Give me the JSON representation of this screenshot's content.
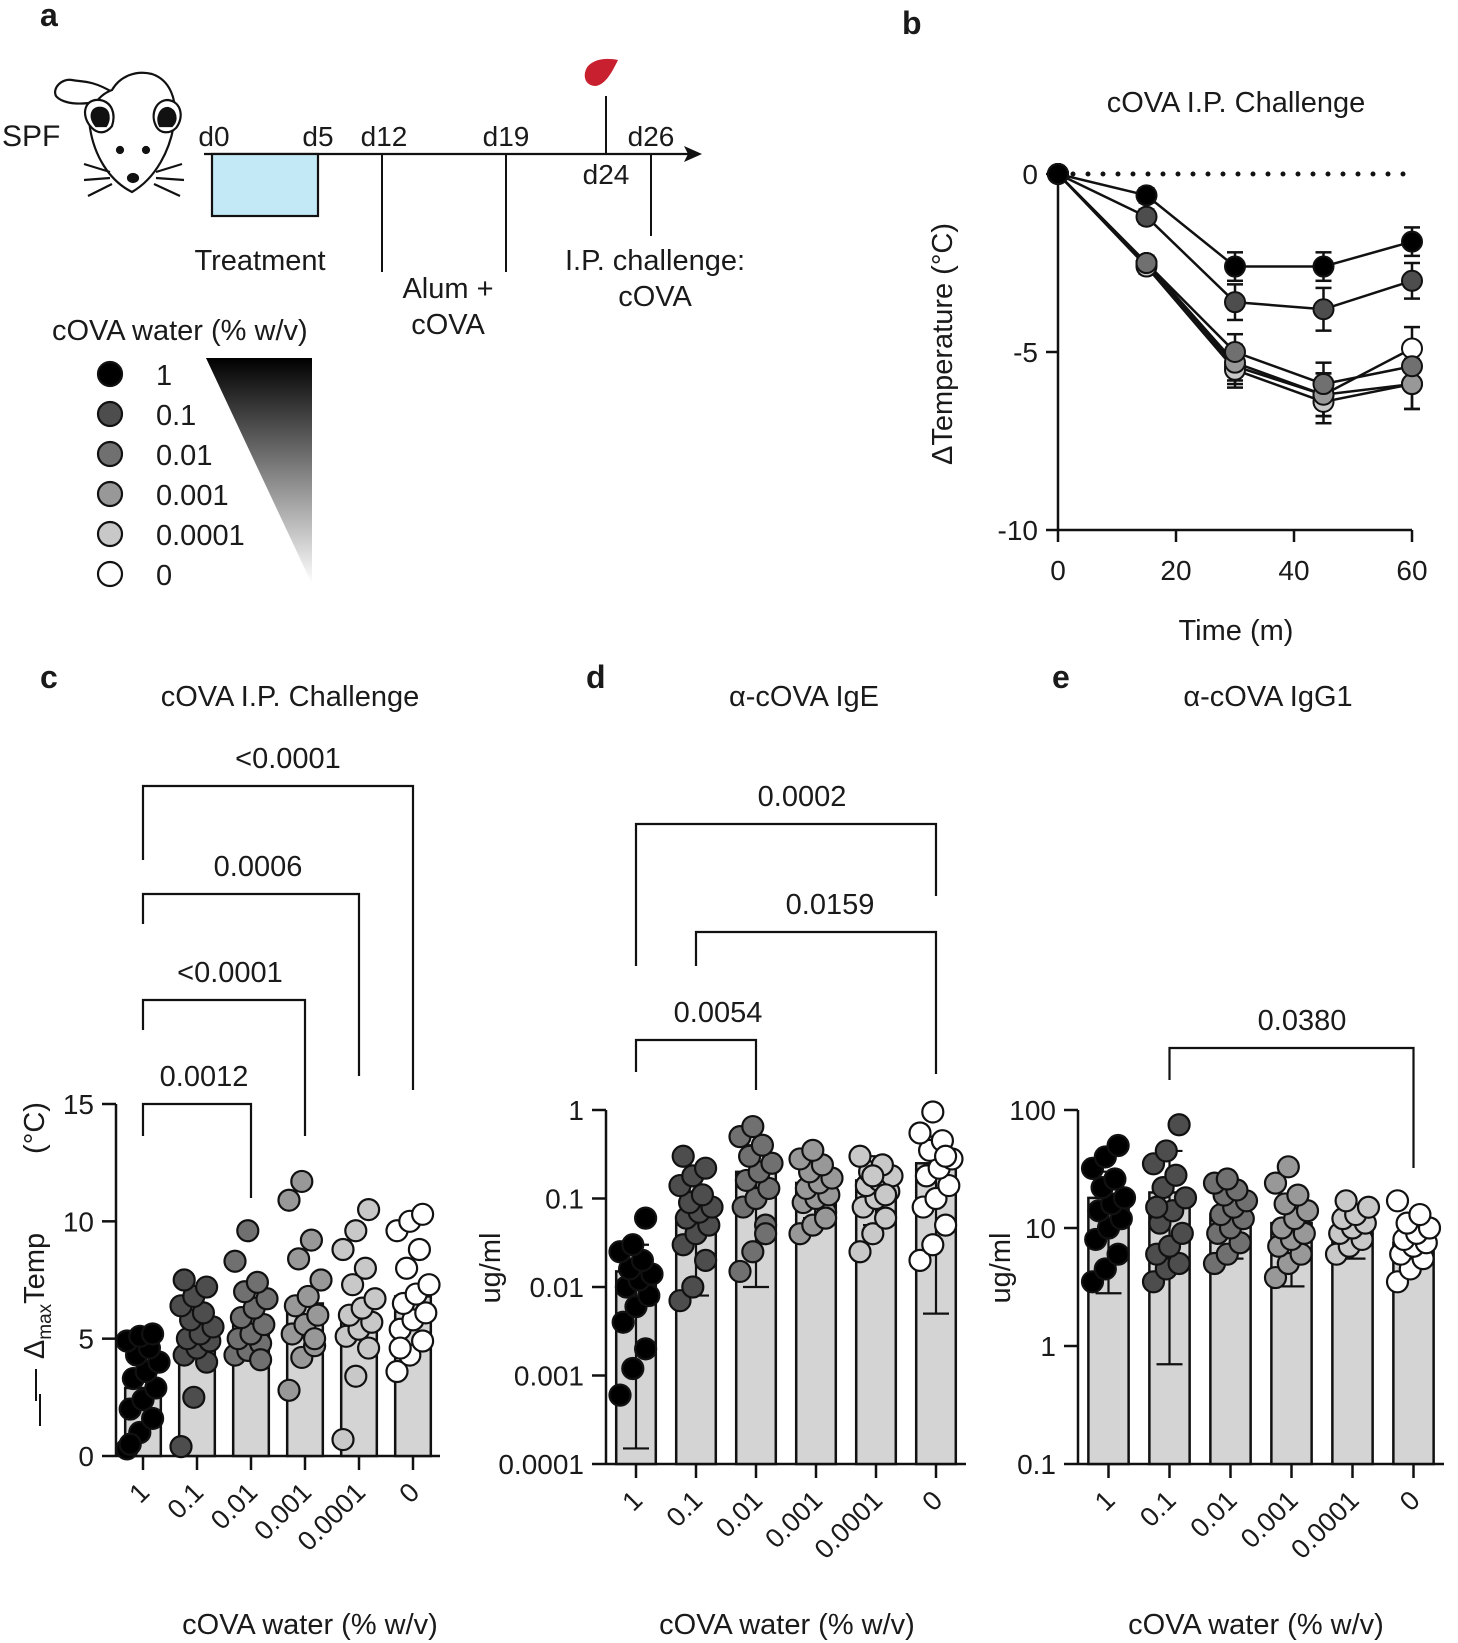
{
  "panels": {
    "a": "a",
    "b": "b",
    "c": "c",
    "d": "d",
    "e": "e"
  },
  "timeline": {
    "mouse_label": "SPF",
    "days": [
      "d0",
      "d5",
      "d12",
      "d19",
      "d24",
      "d26"
    ],
    "treatment": "Treatment",
    "alum_line1": "Alum +",
    "alum_line2": "cOVA",
    "challenge_line1": "I.P. challenge:",
    "challenge_line2": "cOVA"
  },
  "legend": {
    "title": "cOVA water (% w/v)",
    "entries": [
      "1",
      "0.1",
      "0.01",
      "0.001",
      "0.0001",
      "0"
    ],
    "fill_colors": [
      "#000000",
      "#4d4d4d",
      "#707070",
      "#989898",
      "#c8c8c8",
      "#ffffff"
    ]
  },
  "colors": {
    "bar": "#d4d4d4",
    "blood_drop": "#c8202e",
    "treatment_box": "#c3e9f7",
    "axis": "#1a1a1a"
  },
  "chart_data": [
    {
      "type": "line",
      "panel": "b",
      "title": "cOVA I.P. Challenge",
      "xlabel": "Time (m)",
      "ylabel": "ΔTemperature (°C)",
      "xlim": [
        0,
        60
      ],
      "ylim": [
        -10,
        0
      ],
      "xticks": [
        "0",
        "20",
        "40",
        "60"
      ],
      "yticks": [
        "0",
        "-5",
        "-10"
      ],
      "reference_line": 0,
      "x": [
        0,
        15,
        30,
        45,
        60
      ],
      "series": [
        {
          "name": "1",
          "values": [
            0,
            -0.6,
            -2.6,
            -2.6,
            -1.9
          ],
          "errors": [
            0,
            0.2,
            0.4,
            0.4,
            0.4
          ]
        },
        {
          "name": "0.1",
          "values": [
            0,
            -1.2,
            -3.6,
            -3.8,
            -3.0
          ],
          "errors": [
            0,
            0.2,
            0.5,
            0.6,
            0.5
          ]
        },
        {
          "name": "0.01",
          "values": [
            0,
            -2.5,
            -5.0,
            -5.9,
            -5.4
          ],
          "errors": [
            0,
            0.2,
            0.5,
            0.6,
            0.6
          ]
        },
        {
          "name": "0.001",
          "values": [
            0,
            -2.5,
            -5.3,
            -6.2,
            -5.9
          ],
          "errors": [
            0,
            0.2,
            0.5,
            0.6,
            0.7
          ]
        },
        {
          "name": "0.0001",
          "values": [
            0,
            -2.6,
            -5.5,
            -6.4,
            -5.9
          ],
          "errors": [
            0,
            0.2,
            0.5,
            0.6,
            0.7
          ]
        },
        {
          "name": "0",
          "values": [
            0,
            -2.5,
            -5.4,
            -6.2,
            -4.9
          ],
          "errors": [
            0,
            0.2,
            0.5,
            0.6,
            0.6
          ]
        }
      ]
    },
    {
      "type": "bar",
      "panel": "c",
      "title": "cOVA I.P. Challenge",
      "xlabel": "cOVA water (% w/v)",
      "ylabel_pre": "Δ",
      "ylabel_sub": "max",
      "ylabel_post": "Temp",
      "ylabel_unit": "(°C)",
      "scale": "linear",
      "ylim": [
        0,
        15
      ],
      "yticks": [
        0,
        5,
        10,
        15
      ],
      "categories": [
        "1",
        "0.1",
        "0.01",
        "0.001",
        "0.0001",
        "0"
      ],
      "values": [
        2.9,
        5.0,
        5.9,
        6.5,
        6.0,
        6.8
      ],
      "points": [
        [
          0.3,
          1.0,
          1.6,
          2.0,
          2.4,
          2.9,
          3.3,
          3.6,
          4.0,
          4.3,
          4.6,
          4.9,
          5.1,
          5.2,
          0.5
        ],
        [
          0.4,
          2.5,
          4.0,
          4.3,
          4.6,
          4.9,
          5.0,
          5.2,
          5.5,
          5.8,
          6.1,
          6.4,
          6.8,
          7.2,
          7.5
        ],
        [
          4.3,
          4.5,
          4.8,
          5.0,
          5.2,
          5.6,
          5.9,
          6.3,
          6.7,
          7.0,
          7.4,
          8.3,
          9.6,
          4.1
        ],
        [
          2.8,
          4.2,
          4.7,
          5.2,
          5.6,
          6.0,
          6.4,
          6.8,
          7.5,
          8.4,
          9.2,
          10.9,
          11.7,
          5.0
        ],
        [
          0.7,
          3.4,
          4.6,
          5.1,
          5.4,
          5.7,
          6.0,
          6.3,
          6.7,
          7.3,
          8.0,
          8.8,
          9.6,
          10.5
        ],
        [
          3.6,
          4.3,
          4.9,
          5.4,
          5.8,
          6.1,
          6.5,
          6.9,
          7.3,
          8.0,
          8.8,
          9.6,
          10.0,
          10.3,
          4.6
        ]
      ],
      "comparisons": [
        {
          "from": 0,
          "to": 2,
          "label": "0.0012"
        },
        {
          "from": 0,
          "to": 3,
          "label": "<0.0001"
        },
        {
          "from": 0,
          "to": 4,
          "label": "0.0006"
        },
        {
          "from": 0,
          "to": 5,
          "label": "<0.0001"
        }
      ]
    },
    {
      "type": "bar",
      "panel": "d",
      "title": "α-cOVA IgE",
      "xlabel": "cOVA water (% w/v)",
      "ylabel": "ug/ml",
      "scale": "log",
      "ylim": [
        0.0001,
        1
      ],
      "yticks": [
        0.0001,
        0.001,
        0.01,
        0.1,
        1
      ],
      "ytick_labels": [
        "0.0001",
        "0.001",
        "0.01",
        "0.1",
        "1"
      ],
      "categories": [
        "1",
        "0.1",
        "0.01",
        "0.001",
        "0.0001",
        "0"
      ],
      "values": [
        0.015,
        0.06,
        0.2,
        0.15,
        0.16,
        0.25
      ],
      "error_low": [
        0.00015,
        0.008,
        0.01,
        0.06,
        0.05,
        0.005
      ],
      "error_high": [
        0.03,
        0.12,
        0.4,
        0.28,
        0.3,
        0.5
      ],
      "points": [
        [
          0.0006,
          0.0012,
          0.002,
          0.004,
          0.006,
          0.008,
          0.01,
          0.012,
          0.014,
          0.016,
          0.02,
          0.025,
          0.03,
          0.06
        ],
        [
          0.007,
          0.01,
          0.02,
          0.03,
          0.04,
          0.05,
          0.06,
          0.07,
          0.08,
          0.09,
          0.11,
          0.14,
          0.18,
          0.22,
          0.3
        ],
        [
          0.015,
          0.025,
          0.05,
          0.08,
          0.1,
          0.13,
          0.16,
          0.2,
          0.25,
          0.3,
          0.4,
          0.5,
          0.65,
          0.04
        ],
        [
          0.04,
          0.05,
          0.07,
          0.09,
          0.1,
          0.11,
          0.13,
          0.15,
          0.17,
          0.2,
          0.24,
          0.28,
          0.35,
          0.06
        ],
        [
          0.025,
          0.04,
          0.06,
          0.08,
          0.1,
          0.12,
          0.14,
          0.16,
          0.18,
          0.2,
          0.24,
          0.3,
          0.18,
          0.11
        ],
        [
          0.02,
          0.03,
          0.05,
          0.08,
          0.1,
          0.14,
          0.18,
          0.22,
          0.28,
          0.35,
          0.45,
          0.55,
          0.95,
          0.3
        ]
      ],
      "comparisons": [
        {
          "from": 0,
          "to": 2,
          "label": "0.0054"
        },
        {
          "from": 1,
          "to": 5,
          "label": "0.0159"
        },
        {
          "from": 0,
          "to": 5,
          "label": "0.0002"
        }
      ]
    },
    {
      "type": "bar",
      "panel": "e",
      "title": "α-cOVA IgG1",
      "xlabel": "cOVA water (% w/v)",
      "ylabel": "ug/ml",
      "scale": "log",
      "ylim": [
        0.1,
        100
      ],
      "yticks": [
        0.1,
        1,
        10,
        100
      ],
      "ytick_labels": [
        "0.1",
        "1",
        "10",
        "100"
      ],
      "categories": [
        "1",
        "0.1",
        "0.01",
        "0.001",
        "0.0001",
        "0"
      ],
      "values": [
        18,
        20,
        13,
        11,
        9.5,
        7.5
      ],
      "error_low": [
        2.8,
        0.7,
        5.5,
        3.2,
        5.5,
        5.0
      ],
      "error_high": [
        30,
        45,
        20,
        17,
        14,
        10
      ],
      "points": [
        [
          3.5,
          4.5,
          6,
          8,
          10,
          12,
          14,
          16,
          18,
          22,
          26,
          32,
          40,
          50
        ],
        [
          3.5,
          4.5,
          5,
          6,
          7,
          9,
          11,
          14,
          18,
          22,
          28,
          35,
          45,
          75,
          15
        ],
        [
          5,
          6,
          7.5,
          9,
          10,
          12,
          13,
          15,
          17,
          19,
          21,
          24,
          26
        ],
        [
          3.8,
          5,
          6,
          7,
          8,
          9,
          10,
          12,
          14,
          16,
          19,
          24,
          33
        ],
        [
          6,
          7,
          8,
          9,
          10,
          11,
          12,
          13,
          15,
          17
        ],
        [
          3.5,
          4.5,
          5.5,
          6,
          7,
          7.5,
          8,
          9,
          10,
          11,
          13,
          17
        ]
      ],
      "comparisons": [
        {
          "from": 1,
          "to": 5,
          "label": "0.0380"
        }
      ]
    }
  ]
}
